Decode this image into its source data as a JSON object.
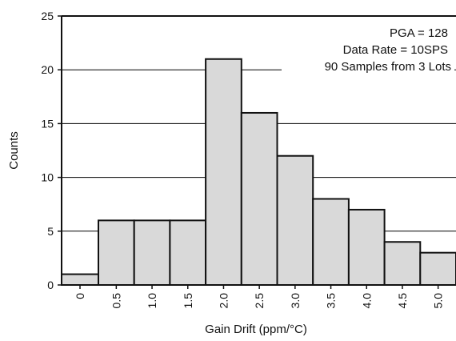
{
  "chart_data": {
    "type": "bar",
    "title": "",
    "xlabel": "Gain Drift (ppm/°C)",
    "ylabel": "Counts",
    "categories": [
      "0",
      "0.5",
      "1.0",
      "1.5",
      "2.0",
      "2.5",
      "3.0",
      "3.5",
      "4.0",
      "4.5",
      "5.0"
    ],
    "values": [
      1,
      6,
      6,
      6,
      21,
      16,
      12,
      8,
      7,
      4,
      3
    ],
    "ylim": [
      0,
      25
    ],
    "yticks": [
      0,
      5,
      10,
      15,
      20,
      25
    ],
    "grid": true,
    "legend": "none",
    "annotations": [
      "PGA = 128",
      "Data Rate = 10SPS",
      "90 Samples from 3 Lots"
    ],
    "colors": {
      "bar_fill": "#d9d9d9",
      "bar_edge": "#111111",
      "grid": "#000000"
    }
  }
}
